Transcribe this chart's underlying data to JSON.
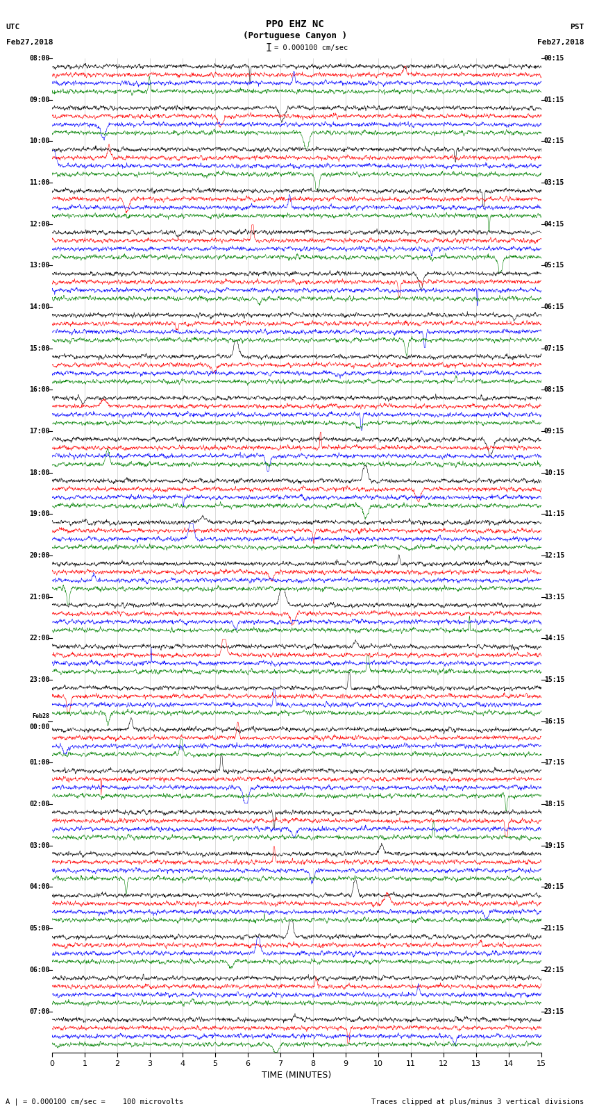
{
  "title_line1": "PPO EHZ NC",
  "title_line2": "(Portuguese Canyon )",
  "scale_bar_text": "= 0.000100 cm/sec",
  "utc_label": "UTC\nFeb27,2018",
  "pst_label": "PST\nFeb27,2018",
  "left_time_labels": [
    "08:00",
    "09:00",
    "10:00",
    "11:00",
    "12:00",
    "13:00",
    "14:00",
    "15:00",
    "16:00",
    "17:00",
    "18:00",
    "19:00",
    "20:00",
    "21:00",
    "22:00",
    "23:00",
    "Feb28\n00:00",
    "01:00",
    "02:00",
    "03:00",
    "04:00",
    "05:00",
    "06:00",
    "07:00"
  ],
  "right_time_labels": [
    "00:15",
    "01:15",
    "02:15",
    "03:15",
    "04:15",
    "05:15",
    "06:15",
    "07:15",
    "08:15",
    "09:15",
    "10:15",
    "11:15",
    "12:15",
    "13:15",
    "14:15",
    "15:15",
    "16:15",
    "17:15",
    "18:15",
    "19:15",
    "20:15",
    "21:15",
    "22:15",
    "23:15"
  ],
  "n_rows": 24,
  "traces_per_row": 4,
  "colors": [
    "black",
    "red",
    "blue",
    "green"
  ],
  "xlabel": "TIME (MINUTES)",
  "xticks": [
    0,
    1,
    2,
    3,
    4,
    5,
    6,
    7,
    8,
    9,
    10,
    11,
    12,
    13,
    14,
    15
  ],
  "xlim": [
    0,
    15
  ],
  "footnote_left": "A | = 0.000100 cm/sec =    100 microvolts",
  "footnote_right": "Traces clipped at plus/minus 3 vertical divisions",
  "bg_color": "white",
  "noise_base_amp": 0.022,
  "spike_prob": 0.0008,
  "seed": 42,
  "dpi": 100,
  "fig_width": 8.5,
  "fig_height": 16.13
}
